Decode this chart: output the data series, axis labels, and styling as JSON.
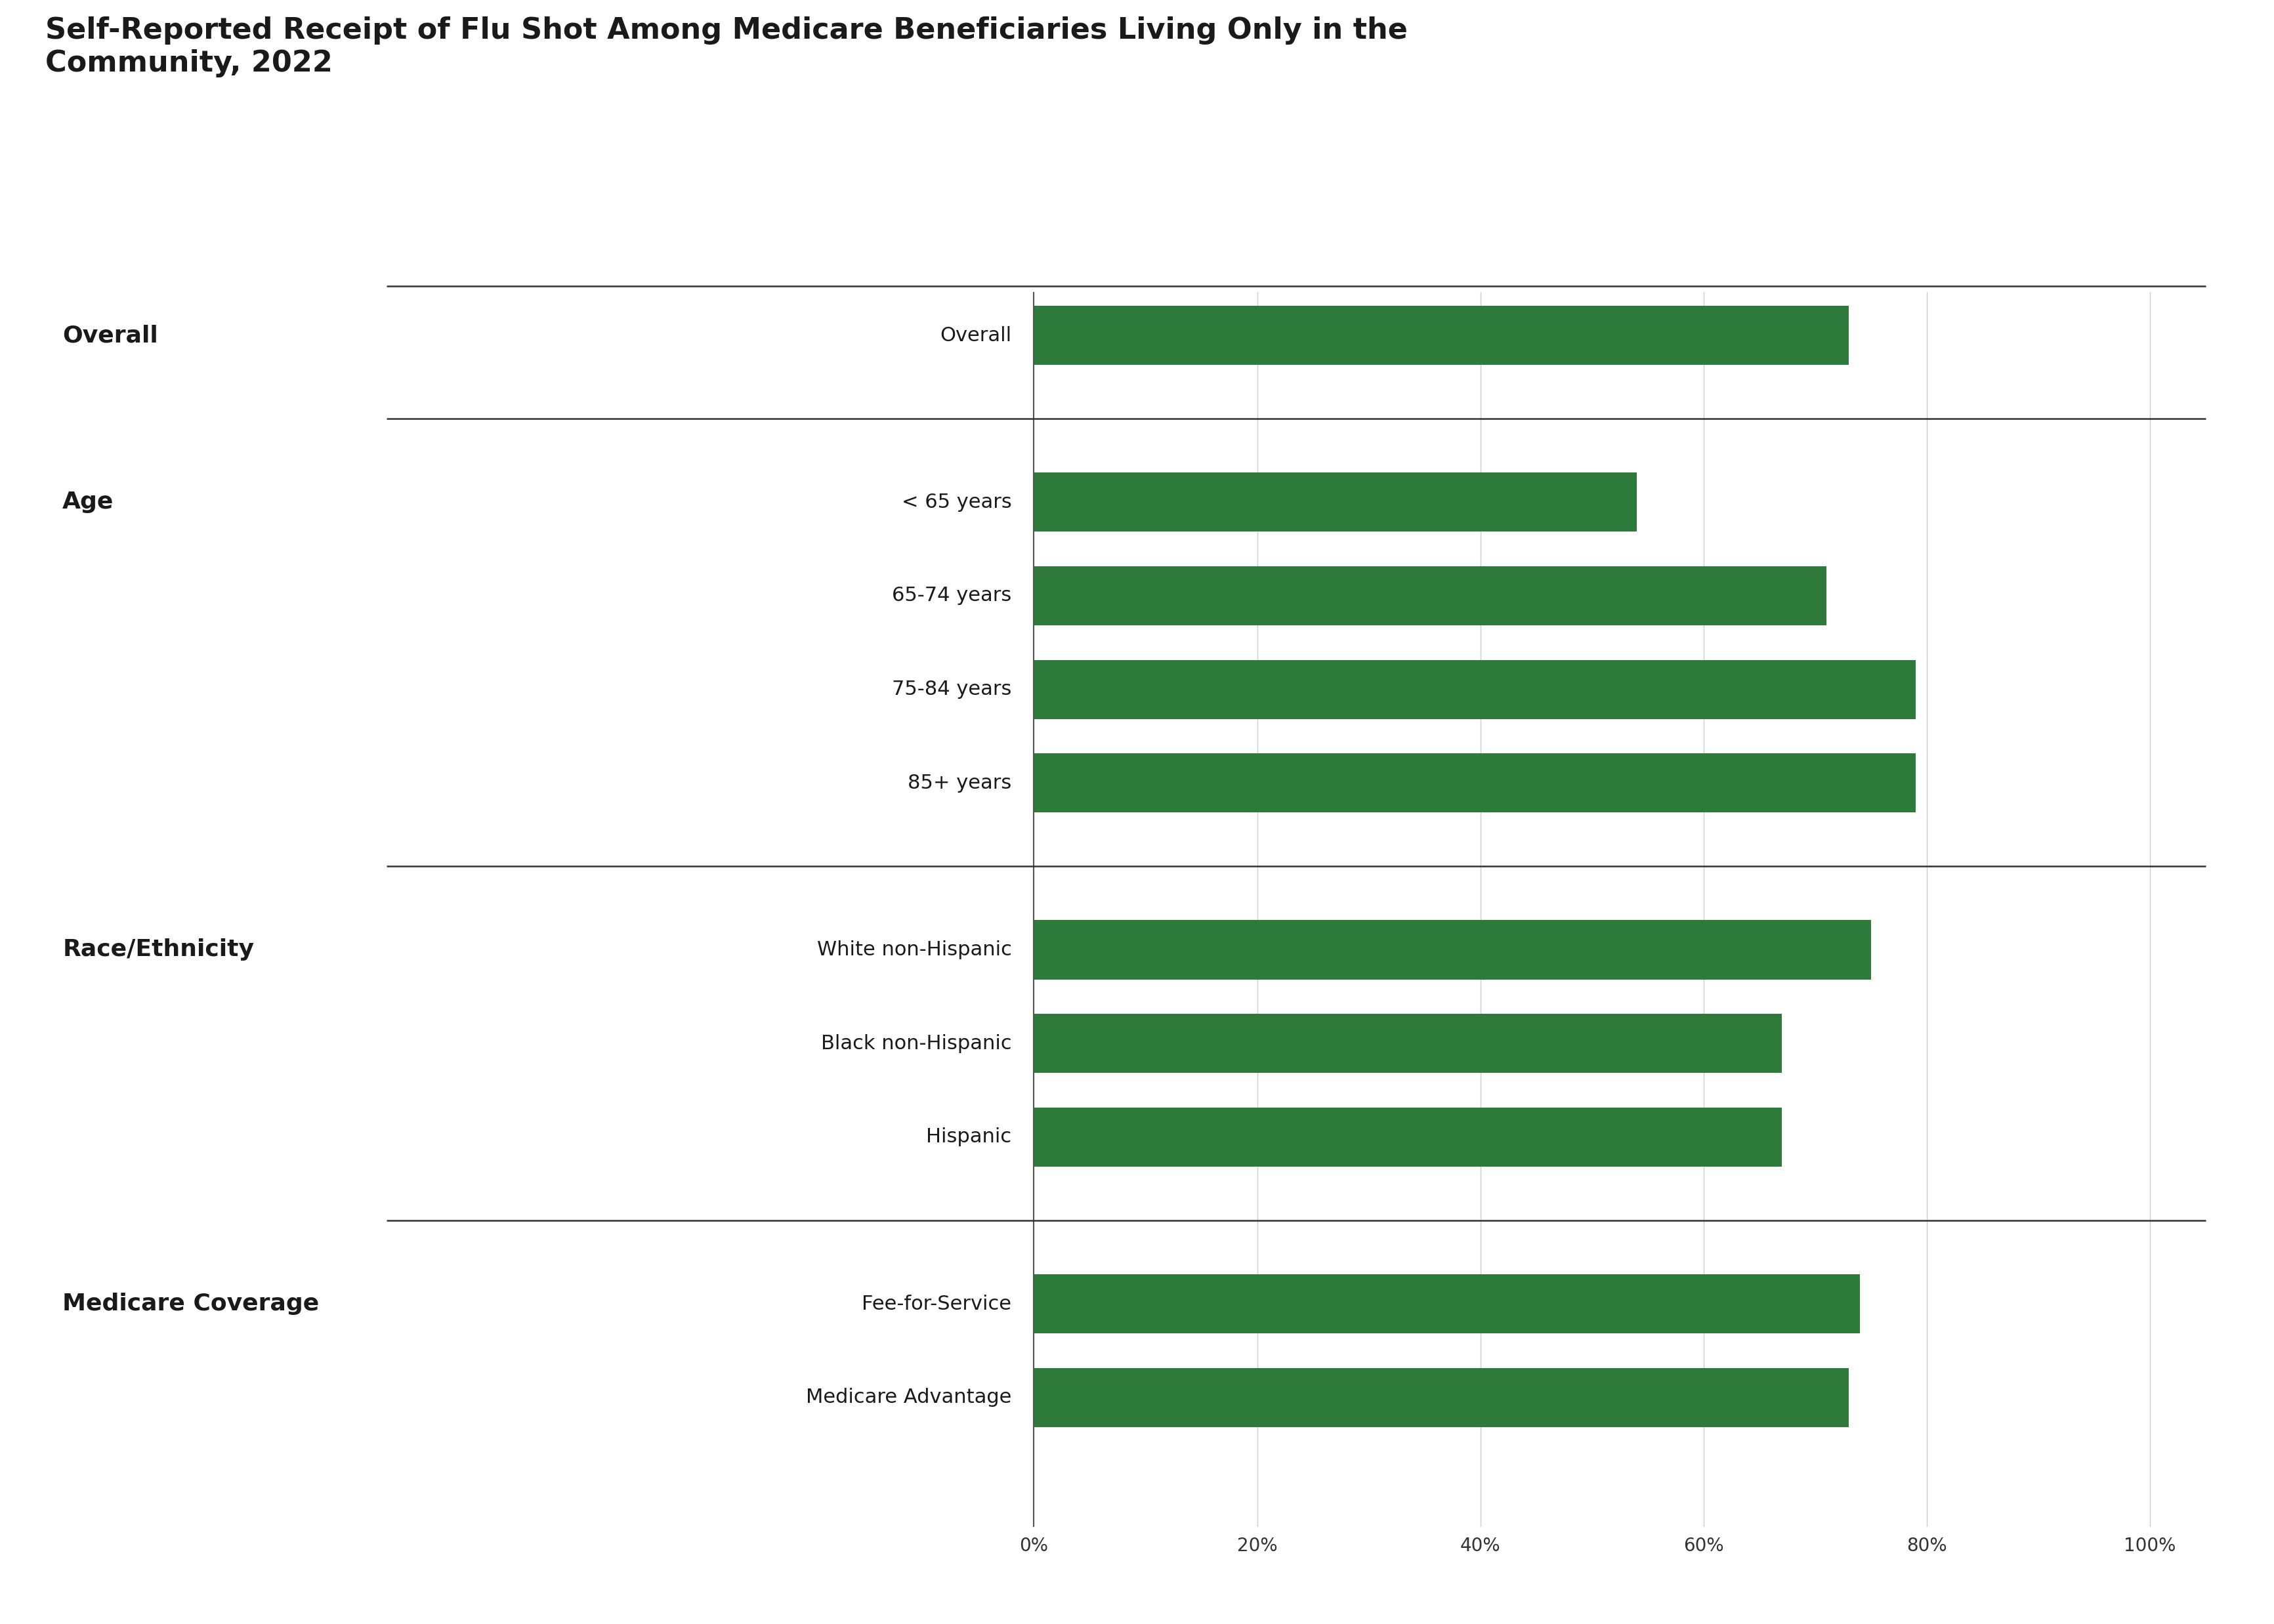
{
  "title": "Self-Reported Receipt of Flu Shot Among Medicare Beneficiaries Living Only in the\nCommunity, 2022",
  "bar_color": "#2d7a3a",
  "background_color": "#ffffff",
  "xticks": [
    0,
    20,
    40,
    60,
    80,
    100
  ],
  "xticklabels": [
    "0%",
    "20%",
    "40%",
    "60%",
    "80%",
    "100%"
  ],
  "sections": [
    {
      "section_label": "Overall",
      "bars": [
        {
          "label": "Overall",
          "value": 73
        }
      ]
    },
    {
      "section_label": "Age",
      "bars": [
        {
          "label": "< 65 years",
          "value": 54
        },
        {
          "label": "65-74 years",
          "value": 71
        },
        {
          "label": "75-84 years",
          "value": 79
        },
        {
          "label": "85+ years",
          "value": 79
        }
      ]
    },
    {
      "section_label": "Race/Ethnicity",
      "bars": [
        {
          "label": "White non-Hispanic",
          "value": 75
        },
        {
          "label": "Black non-Hispanic",
          "value": 67
        },
        {
          "label": "Hispanic",
          "value": 67
        }
      ]
    },
    {
      "section_label": "Medicare Coverage",
      "bars": [
        {
          "label": "Fee-for-Service",
          "value": 74
        },
        {
          "label": "Medicare Advantage",
          "value": 73
        }
      ]
    }
  ],
  "section_label_fontsize": 26,
  "bar_label_fontsize": 22,
  "title_fontsize": 32,
  "tick_fontsize": 20,
  "bar_height": 0.55,
  "section_line_color": "#333333",
  "title_color": "#1a1a1a",
  "grid_color": "#cccccc",
  "axis_line_color": "#555555"
}
